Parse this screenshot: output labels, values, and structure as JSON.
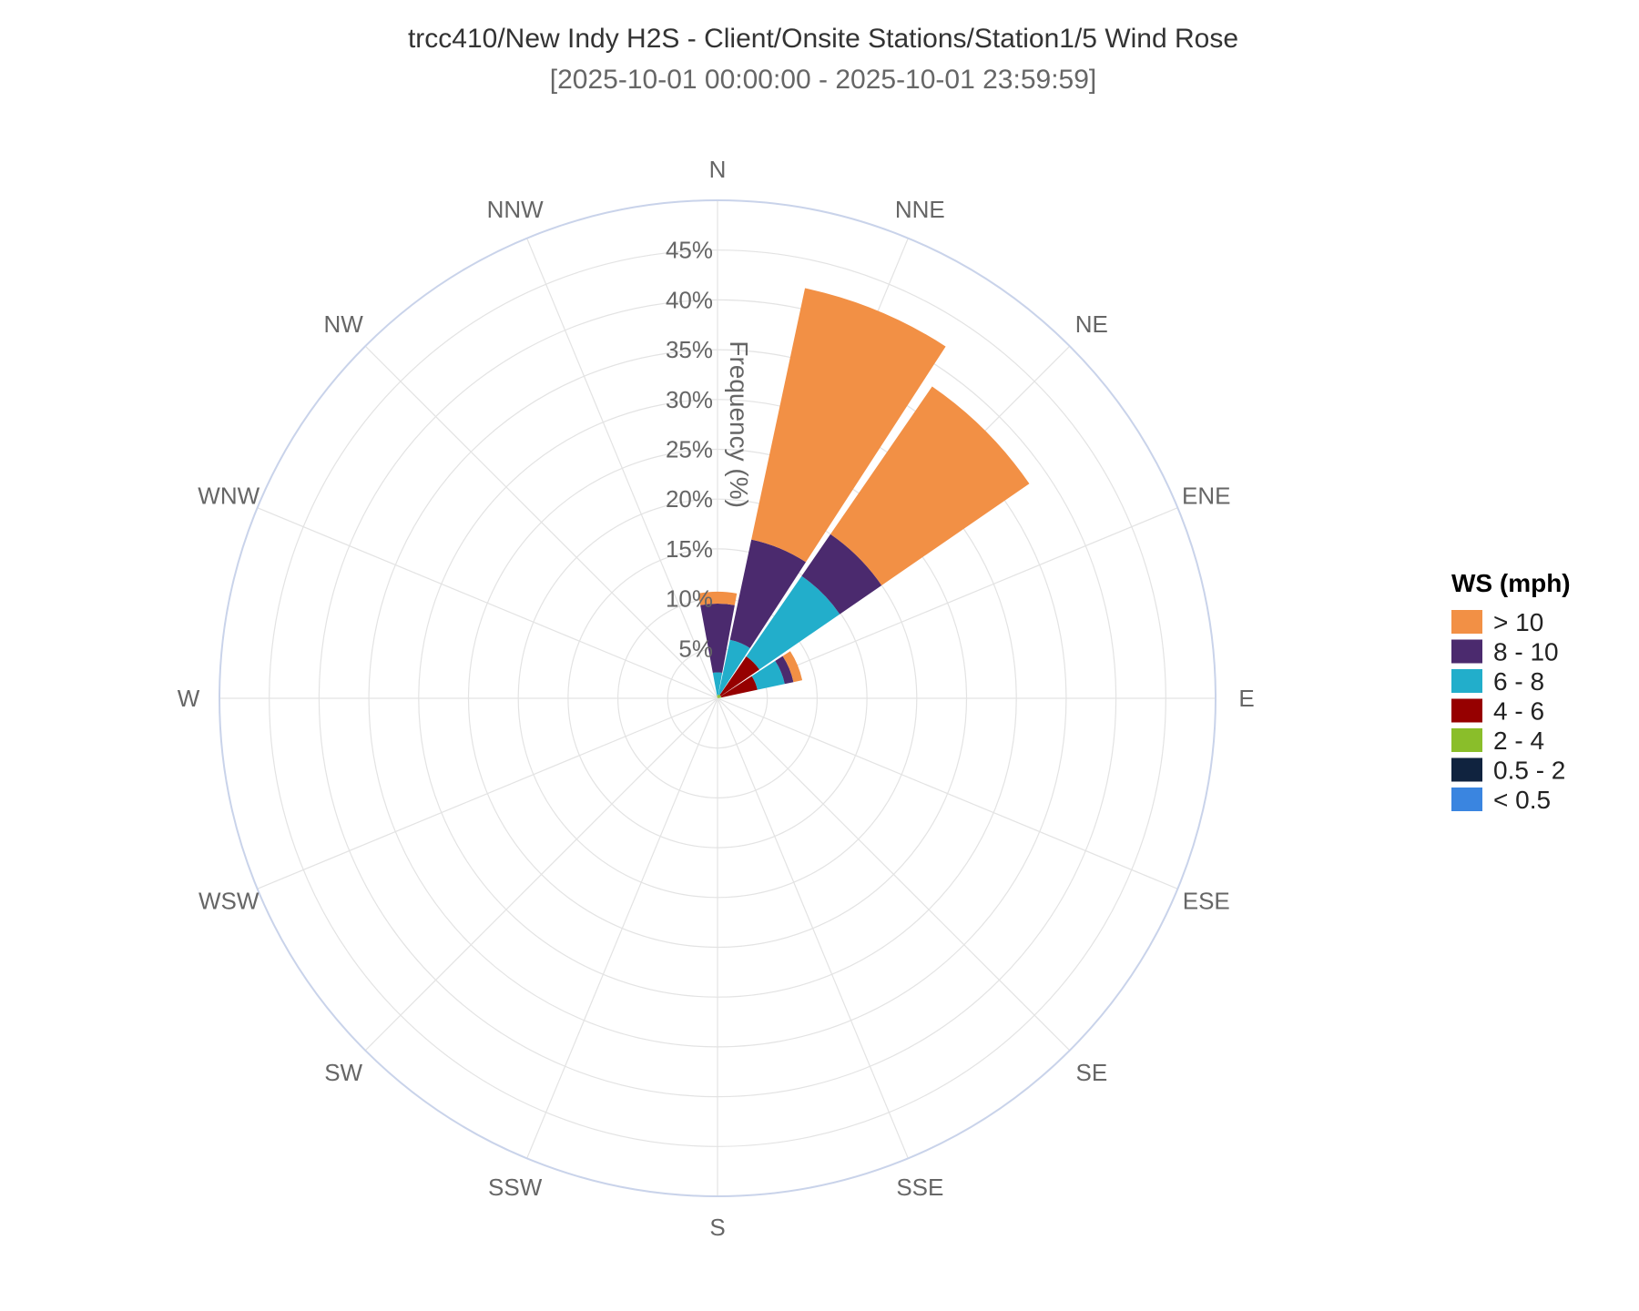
{
  "chart_data": {
    "type": "barpolar",
    "title": "trcc410/New Indy H2S - Client/Onsite Stations/Station1/5 Wind Rose",
    "subtitle": "[2025-10-01 00:00:00 - 2025-10-01 23:59:59]",
    "radial_axis": {
      "title": "Frequency (%)",
      "range": [
        0,
        50
      ],
      "tick_values": [
        5,
        10,
        15,
        20,
        25,
        30,
        35,
        40,
        45
      ],
      "tick_labels": [
        "5%",
        "10%",
        "15%",
        "20%",
        "25%",
        "30%",
        "35%",
        "40%",
        "45%"
      ]
    },
    "directions": [
      "N",
      "NNE",
      "NE",
      "ENE",
      "E",
      "ESE",
      "SE",
      "SSE",
      "S",
      "SSW",
      "SW",
      "WSW",
      "W",
      "WNW",
      "NW",
      "NNW"
    ],
    "grid": true,
    "legend": {
      "title": "WS (mph)",
      "position": "right"
    },
    "series": [
      {
        "name": "< 0.5",
        "color": "#3a85e0",
        "values": [
          0,
          0,
          0,
          0,
          0,
          0,
          0,
          0,
          0,
          0,
          0,
          0,
          0,
          0,
          0,
          0
        ]
      },
      {
        "name": "0.5 - 2",
        "color": "#10233f",
        "values": [
          0,
          0,
          0,
          0,
          0,
          0,
          0,
          0,
          0,
          0,
          0,
          0,
          0,
          0,
          0,
          0
        ]
      },
      {
        "name": "2 - 4",
        "color": "#8abe2a",
        "values": [
          0.3,
          0.4,
          0.4,
          0.4,
          0,
          0,
          0,
          0,
          0,
          0,
          0,
          0,
          0,
          0,
          0,
          0
        ]
      },
      {
        "name": "4 - 6",
        "color": "#960000",
        "values": [
          0,
          0,
          4.7,
          3.7,
          0,
          0,
          0,
          0,
          0,
          0,
          0,
          0,
          0,
          0,
          0,
          0
        ]
      },
      {
        "name": "6 - 8",
        "color": "#22aecb",
        "values": [
          2.3,
          5.6,
          9.8,
          2.8,
          0,
          0,
          0,
          0,
          0,
          0,
          0,
          0,
          0,
          0,
          0,
          0
        ]
      },
      {
        "name": "8 - 10",
        "color": "#4b2a6e",
        "values": [
          6.9,
          10.3,
          5.1,
          0.9,
          0,
          0,
          0,
          0,
          0,
          0,
          0,
          0,
          0,
          0,
          0,
          0
        ]
      },
      {
        "name": "> 10",
        "color": "#f29045",
        "values": [
          1.2,
          25.8,
          18.0,
          0.9,
          0,
          0,
          0,
          0,
          0,
          0,
          0,
          0,
          0,
          0,
          0,
          0
        ]
      }
    ]
  }
}
